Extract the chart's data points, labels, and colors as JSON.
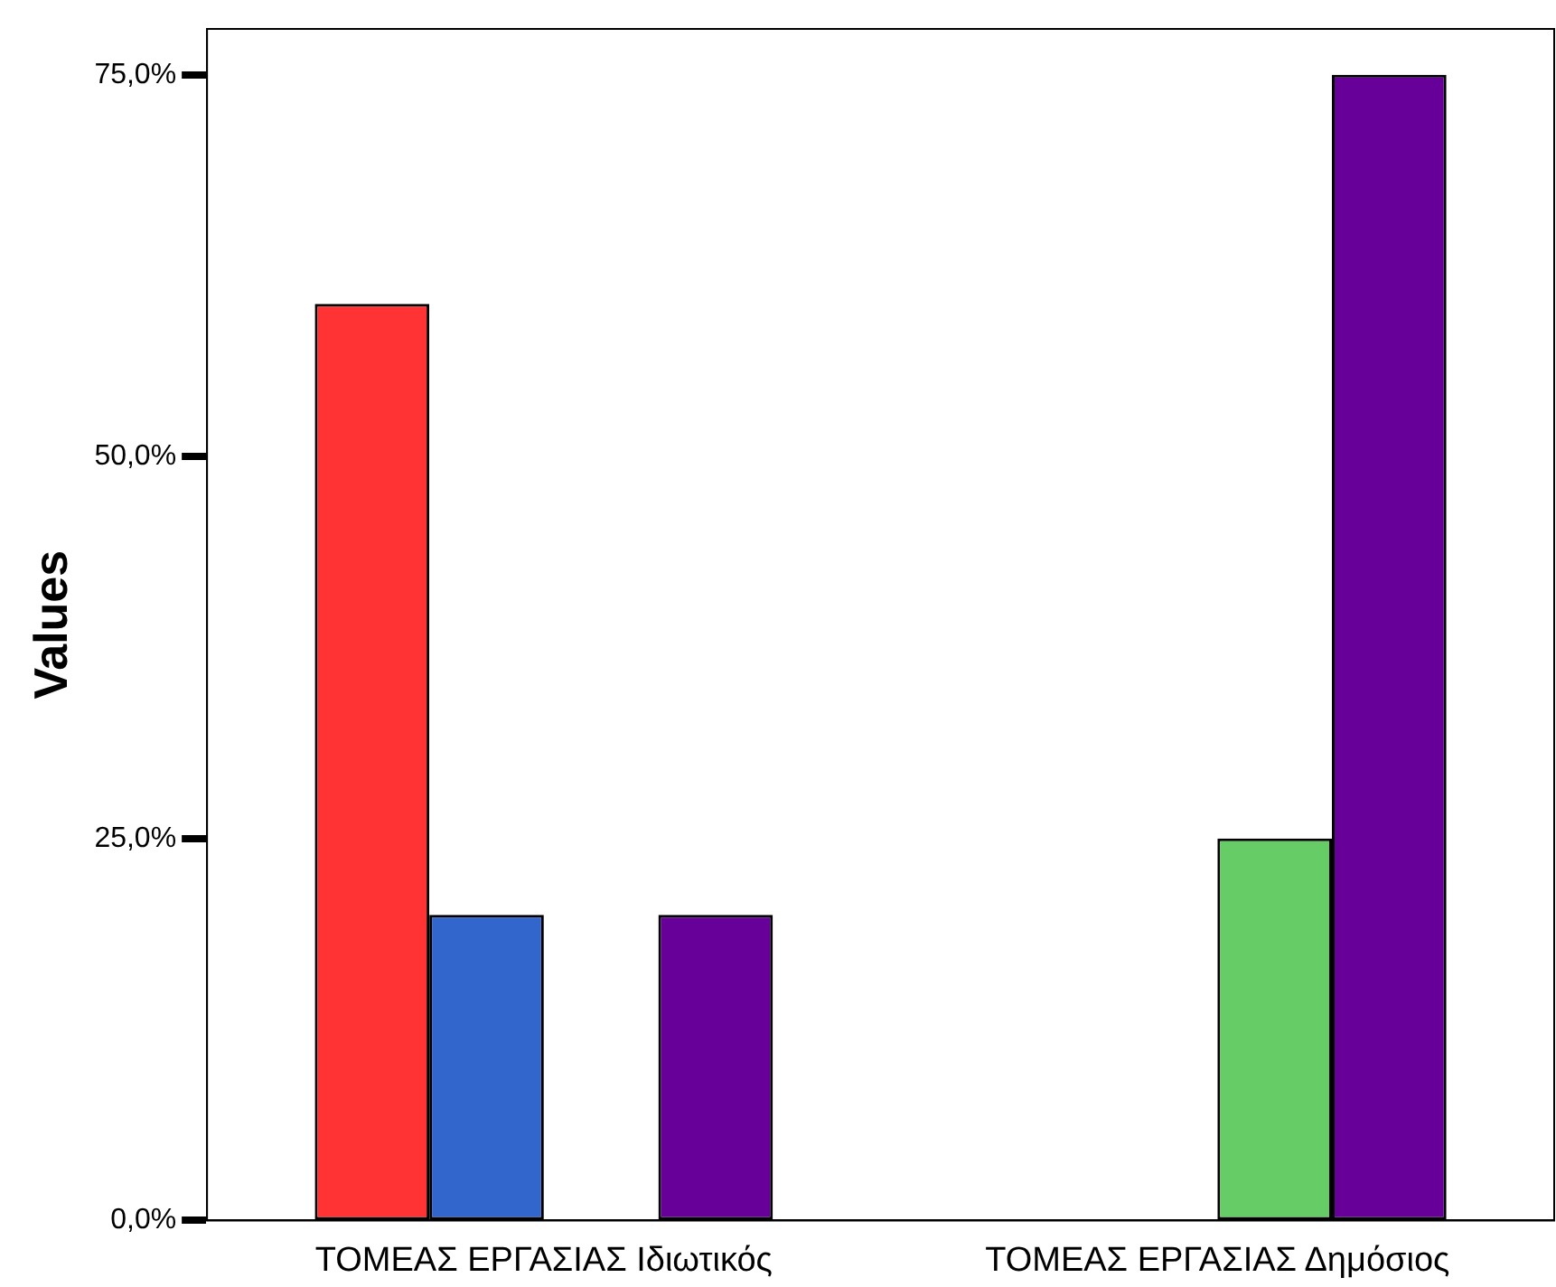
{
  "chart_data": {
    "type": "bar",
    "ylabel": "Values",
    "categories": [
      "ΤΟΜΕΑΣ ΕΡΓΑΣΙΑΣ Ιδιωτικός",
      "ΤΟΜΕΑΣ ΕΡΓΑΣΙΑΣ Δημόσιος"
    ],
    "series": [
      {
        "color": "#ff3333",
        "values": [
          60,
          null
        ]
      },
      {
        "color": "#3366cc",
        "values": [
          20,
          null
        ]
      },
      {
        "color": "#66cc66",
        "values": [
          null,
          25
        ]
      },
      {
        "color": "#660099",
        "values": [
          20,
          75
        ]
      }
    ],
    "ylim": [
      0,
      78
    ],
    "yticks": [
      {
        "value": 0,
        "label": "0,0%"
      },
      {
        "value": 25,
        "label": "25,0%"
      },
      {
        "value": 50,
        "label": "50,0%"
      },
      {
        "value": 75,
        "label": "75,0%"
      }
    ],
    "grid": false,
    "legend": false
  }
}
